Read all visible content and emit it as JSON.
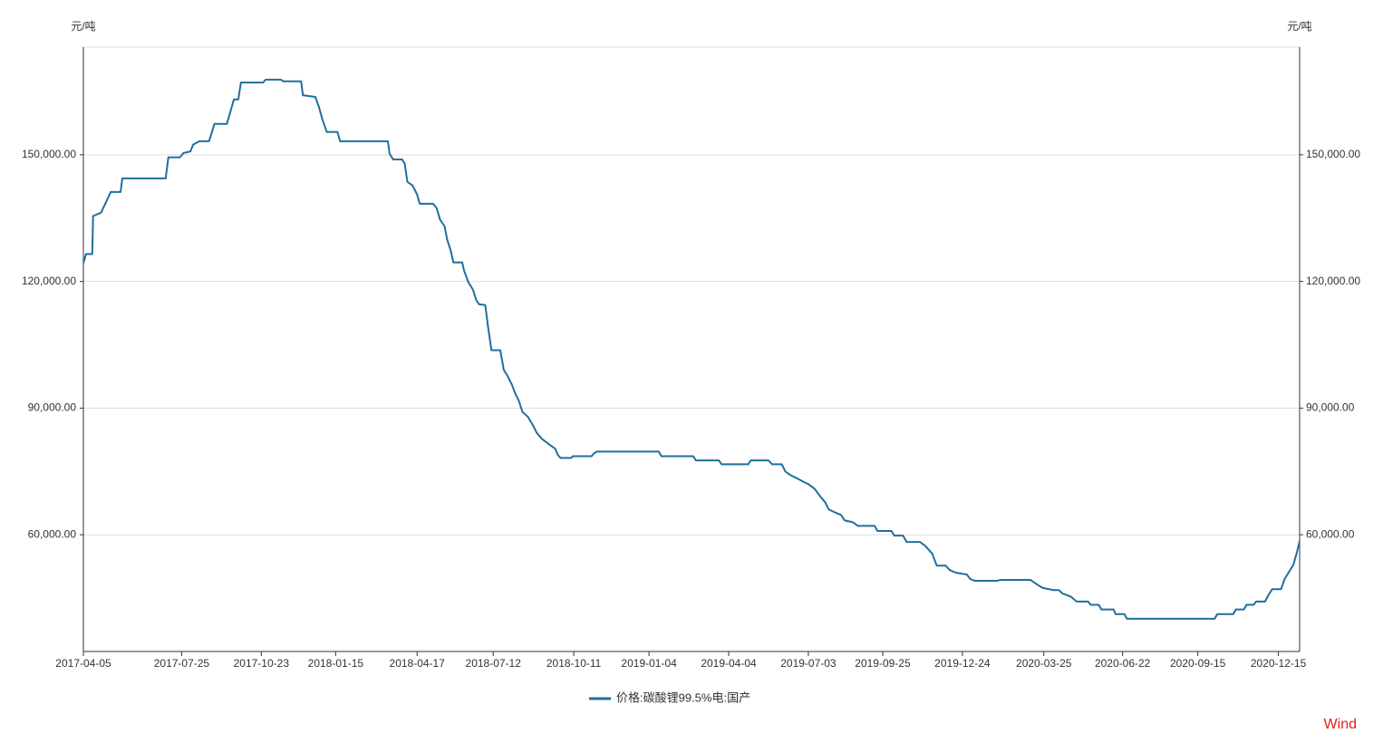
{
  "chart_data": {
    "type": "line",
    "y_label": "元/吨",
    "y2_label": "元/吨",
    "annotation": "Wind",
    "xlim": [
      "2017-04-05",
      "2021-01-08"
    ],
    "xticks": [
      "2017-04-05",
      "2017-07-25",
      "2017-10-23",
      "2018-01-15",
      "2018-04-17",
      "2018-07-12",
      "2018-10-11",
      "2019-01-04",
      "2019-04-04",
      "2019-07-03",
      "2019-09-25",
      "2019-12-24",
      "2020-03-25",
      "2020-06-22",
      "2020-09-15",
      "2020-12-15"
    ],
    "ylim": [
      32357,
      175500
    ],
    "yticks": [
      {
        "value": 60000,
        "label": "60,000.00"
      },
      {
        "value": 90000,
        "label": "90,000.00"
      },
      {
        "value": 120000,
        "label": "120,000.00"
      },
      {
        "value": 150000,
        "label": "150,000.00"
      }
    ],
    "y2lim": [
      32357,
      175500
    ],
    "y2ticks": [
      {
        "value": 60000,
        "label": "60,000.00"
      },
      {
        "value": 90000,
        "label": "90,000.00"
      },
      {
        "value": 120000,
        "label": "120,000.00"
      },
      {
        "value": 150000,
        "label": "150,000.00"
      }
    ],
    "grid": true,
    "legend": "bottom",
    "x": [
      "2017-04-05",
      "2017-04-08",
      "2017-04-15",
      "2017-04-16",
      "2017-04-25",
      "2017-05-06",
      "2017-05-17",
      "2017-05-19",
      "2017-07-07",
      "2017-07-10",
      "2017-07-23",
      "2017-07-27",
      "2017-08-04",
      "2017-08-07",
      "2017-08-14",
      "2017-08-25",
      "2017-08-31",
      "2017-09-14",
      "2017-09-17",
      "2017-09-22",
      "2017-09-27",
      "2017-09-30",
      "2017-10-25",
      "2017-10-28",
      "2017-11-14",
      "2017-11-17",
      "2017-12-07",
      "2017-12-09",
      "2017-12-23",
      "2017-12-27",
      "2017-12-31",
      "2018-01-05",
      "2018-01-17",
      "2018-01-20",
      "2018-03-15",
      "2018-03-17",
      "2018-03-21",
      "2018-03-31",
      "2018-04-03",
      "2018-04-06",
      "2018-04-12",
      "2018-04-17",
      "2018-04-20",
      "2018-05-05",
      "2018-05-09",
      "2018-05-13",
      "2018-05-18",
      "2018-05-21",
      "2018-05-25",
      "2018-05-28",
      "2018-06-07",
      "2018-06-09",
      "2018-06-14",
      "2018-06-19",
      "2018-06-23",
      "2018-06-26",
      "2018-07-03",
      "2018-07-06",
      "2018-07-10",
      "2018-07-20",
      "2018-07-24",
      "2018-07-28",
      "2018-08-02",
      "2018-08-06",
      "2018-08-10",
      "2018-08-14",
      "2018-08-20",
      "2018-08-26",
      "2018-08-30",
      "2018-09-05",
      "2018-09-12",
      "2018-09-20",
      "2018-09-23",
      "2018-09-26",
      "2018-10-08",
      "2018-10-10",
      "2018-10-31",
      "2018-11-03",
      "2018-11-06",
      "2019-01-15",
      "2019-01-18",
      "2019-02-23",
      "2019-02-26",
      "2019-03-24",
      "2019-03-27",
      "2019-04-26",
      "2019-04-29",
      "2019-05-19",
      "2019-05-23",
      "2019-06-03",
      "2019-06-07",
      "2019-06-13",
      "2019-06-19",
      "2019-06-27",
      "2019-07-03",
      "2019-07-10",
      "2019-07-16",
      "2019-07-22",
      "2019-07-26",
      "2019-08-01",
      "2019-08-09",
      "2019-08-13",
      "2019-08-22",
      "2019-08-28",
      "2019-09-16",
      "2019-09-19",
      "2019-10-05",
      "2019-10-08",
      "2019-10-18",
      "2019-10-22",
      "2019-11-06",
      "2019-11-12",
      "2019-11-20",
      "2019-11-25",
      "2019-12-05",
      "2019-12-10",
      "2019-12-17",
      "2019-12-29",
      "2020-01-02",
      "2020-01-07",
      "2020-02-01",
      "2020-02-05",
      "2020-03-10",
      "2020-03-19",
      "2020-03-24",
      "2020-04-05",
      "2020-04-11",
      "2020-04-15",
      "2020-04-25",
      "2020-05-01",
      "2020-05-14",
      "2020-05-17",
      "2020-05-26",
      "2020-05-29",
      "2020-06-12",
      "2020-06-14",
      "2020-06-24",
      "2020-06-27",
      "2020-10-04",
      "2020-10-07",
      "2020-10-25",
      "2020-10-28",
      "2020-11-06",
      "2020-11-09",
      "2020-11-17",
      "2020-11-20",
      "2020-11-30",
      "2020-12-04",
      "2020-12-08",
      "2020-12-18",
      "2020-12-22",
      "2020-12-27",
      "2021-01-01",
      "2021-01-05",
      "2021-01-08"
    ],
    "series": [
      {
        "name": "价格:碳酸锂99.5%电:国产",
        "color": "#1f6f9e",
        "values": [
          124300,
          126500,
          126500,
          135500,
          136300,
          141200,
          141200,
          144400,
          144400,
          149400,
          149400,
          150400,
          150800,
          152400,
          153200,
          153200,
          157300,
          157300,
          159400,
          163100,
          163100,
          167100,
          167100,
          167800,
          167800,
          167400,
          167400,
          164100,
          163700,
          161400,
          158400,
          155400,
          155400,
          153200,
          153200,
          150200,
          148900,
          148900,
          147900,
          143600,
          142700,
          140600,
          138400,
          138400,
          137400,
          134600,
          133100,
          129900,
          127300,
          124500,
          124500,
          122600,
          119800,
          118100,
          115500,
          114600,
          114400,
          109500,
          103700,
          103700,
          99000,
          97700,
          95600,
          93400,
          91700,
          89100,
          88000,
          85900,
          84200,
          82700,
          81600,
          80400,
          78900,
          78200,
          78200,
          78600,
          78600,
          79300,
          79700,
          79700,
          78600,
          78600,
          77600,
          77600,
          76700,
          76700,
          77600,
          77600,
          76700,
          76700,
          75000,
          74100,
          73500,
          72600,
          72000,
          70900,
          69200,
          67700,
          66000,
          65400,
          64700,
          63400,
          63000,
          62100,
          62100,
          60900,
          60900,
          59800,
          59800,
          58300,
          58300,
          57400,
          55500,
          52700,
          52700,
          51600,
          51000,
          50600,
          49500,
          49100,
          49100,
          49300,
          49300,
          48000,
          47400,
          46900,
          46900,
          46100,
          45300,
          44200,
          44200,
          43400,
          43400,
          42300,
          42300,
          41200,
          41200,
          40100,
          40100,
          41200,
          41200,
          42300,
          42300,
          43400,
          43400,
          44200,
          44200,
          45800,
          47100,
          47100,
          49500,
          51200,
          52900,
          55900,
          58500
        ]
      }
    ]
  }
}
